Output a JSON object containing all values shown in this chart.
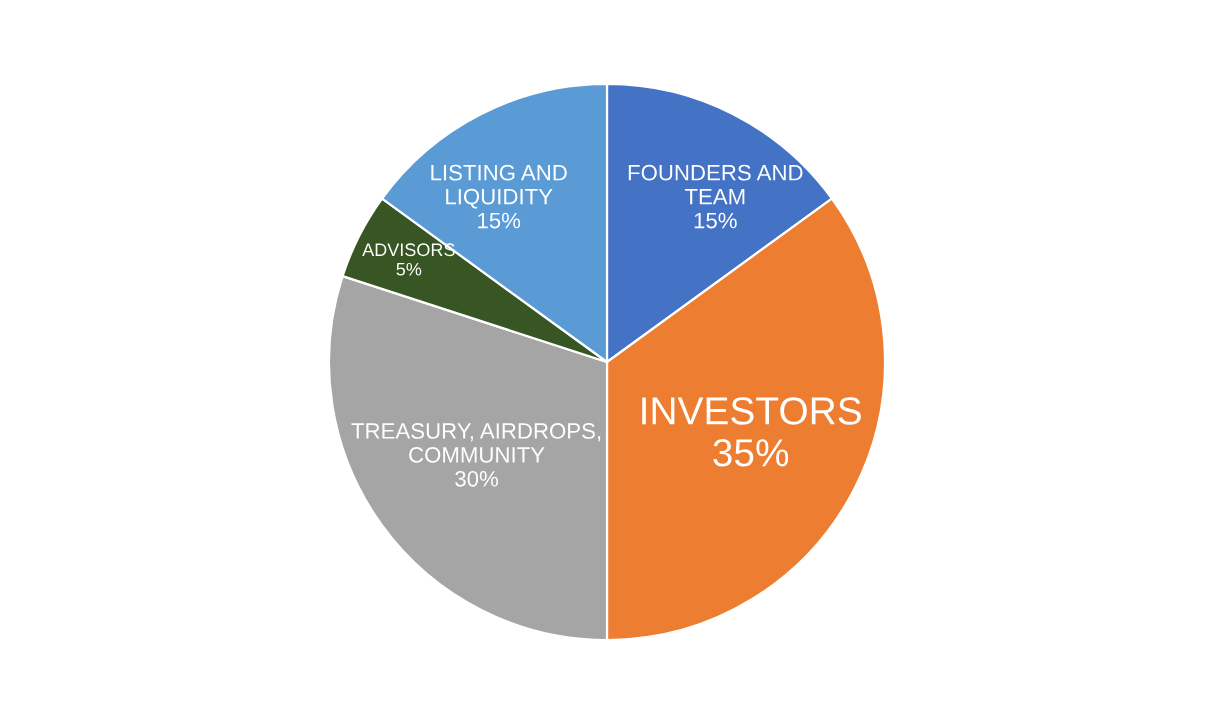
{
  "chart_data": {
    "type": "pie",
    "categories": [
      "FOUNDERS AND\nTEAM",
      "INVESTORS",
      "TREASURY, AIRDROPS,\nCOMMUNITY",
      "ADVISORS",
      "LISTING AND\nLIQUIDITY"
    ],
    "values": [
      15,
      35,
      30,
      5,
      15
    ],
    "colors": [
      "#4472c4",
      "#ed7d31",
      "#a5a5a5",
      "#375623",
      "#5b9bd5"
    ],
    "value_labels": [
      "15%",
      "35%",
      "30%",
      "5%",
      "15%"
    ],
    "legend": false
  }
}
